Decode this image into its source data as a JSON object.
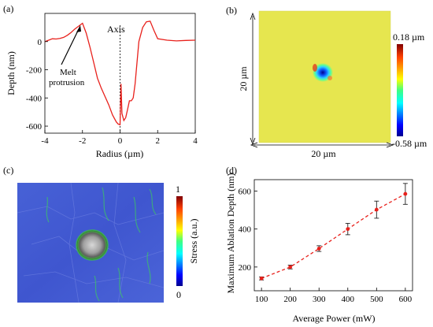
{
  "panels": {
    "a": "(a)",
    "b": "(b)",
    "c": "(c)",
    "d": "(d)"
  },
  "colors": {
    "red": "#e8211c",
    "map_yellow": "#e6e64f",
    "stress_blue": "#4259d8",
    "black": "#000000"
  },
  "icons": [
    "arrow-icon"
  ],
  "chart_data": [
    {
      "type": "line",
      "panel": "(a)",
      "xlabel": "Radius (µm)",
      "ylabel": "Depth (nm)",
      "xlim": [
        -4,
        4
      ],
      "ylim": [
        -650,
        200
      ],
      "x_ticks": [
        "-4",
        "-2",
        "0",
        "2",
        "4"
      ],
      "y_ticks": [
        "-600",
        "-400",
        "-200",
        "0"
      ],
      "annotations": {
        "axis": "Axis",
        "melt": "Melt\nprotrusion"
      },
      "series": [
        {
          "x": [
            -4.0,
            -3.8,
            -3.6,
            -3.4,
            -3.2,
            -3.0,
            -2.8,
            -2.6,
            -2.4,
            -2.2,
            -2.0,
            -1.8,
            -1.6,
            -1.4,
            -1.2,
            -1.0,
            -0.8,
            -0.6,
            -0.4,
            -0.2,
            -0.1,
            0.0,
            0.05,
            0.1,
            0.2,
            0.3,
            0.4,
            0.5,
            0.6,
            0.7,
            0.8,
            0.9,
            1.0,
            1.2,
            1.4,
            1.6,
            1.8,
            2.0,
            2.5,
            3.0,
            3.5,
            4.0
          ],
          "y": [
            0,
            10,
            20,
            18,
            22,
            30,
            45,
            65,
            90,
            110,
            130,
            60,
            -40,
            -150,
            -260,
            -330,
            -390,
            -450,
            -520,
            -570,
            -585,
            -590,
            -300,
            -510,
            -560,
            -540,
            -480,
            -420,
            -420,
            -400,
            -300,
            -150,
            0,
            100,
            140,
            145,
            80,
            20,
            10,
            5,
            8,
            10
          ]
        }
      ]
    },
    {
      "type": "heatmap",
      "panel": "(b)",
      "x_extent_label": "20 µm",
      "y_extent_label": "20 µm",
      "colorbar": {
        "max": "0.18 µm",
        "min": "-0.58 µm"
      }
    },
    {
      "type": "heatmap",
      "panel": "(c)",
      "colorbar": {
        "label": "Stress (a.u.)",
        "max": "1",
        "min": "0"
      }
    },
    {
      "type": "line",
      "panel": "(d)",
      "xlabel": "Average Power (mW)",
      "ylabel": "Maximum Ablation Depth (nm)",
      "xlim": [
        75,
        625
      ],
      "ylim": [
        75,
        660
      ],
      "x_ticks": [
        "100",
        "200",
        "300",
        "400",
        "500",
        "600"
      ],
      "y_ticks": [
        "200",
        "400",
        "600"
      ],
      "series": [
        {
          "x": [
            100,
            200,
            300,
            400,
            500,
            600
          ],
          "y": [
            140,
            200,
            297,
            400,
            502,
            585
          ],
          "err": [
            8,
            10,
            15,
            30,
            45,
            55
          ]
        }
      ]
    }
  ]
}
